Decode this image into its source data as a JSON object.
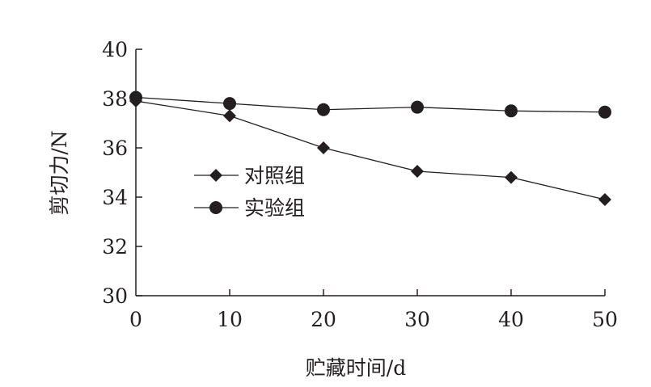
{
  "chart_data": {
    "type": "line",
    "xlabel": "贮藏时间/d",
    "ylabel": "剪切力/N",
    "x": [
      0,
      10,
      20,
      30,
      40,
      50
    ],
    "xlim": [
      0,
      50
    ],
    "ylim": [
      30,
      40
    ],
    "xticks": [
      "0",
      "10",
      "20",
      "30",
      "40",
      "50"
    ],
    "yticks": [
      "30",
      "32",
      "34",
      "36",
      "38",
      "40"
    ],
    "grid": false,
    "legend_position": "center-left",
    "series": [
      {
        "name": "对照组",
        "marker": "diamond",
        "color": "#231f20",
        "values": [
          37.9,
          37.3,
          36.0,
          35.05,
          34.8,
          33.9
        ]
      },
      {
        "name": "实验组",
        "marker": "circle",
        "color": "#231f20",
        "values": [
          38.05,
          37.8,
          37.55,
          37.65,
          37.5,
          37.45
        ]
      }
    ]
  }
}
